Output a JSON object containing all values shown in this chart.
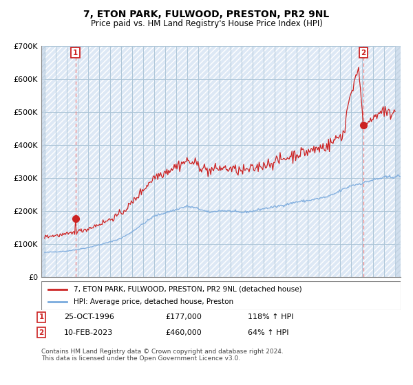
{
  "title": "7, ETON PARK, FULWOOD, PRESTON, PR2 9NL",
  "subtitle": "Price paid vs. HM Land Registry's House Price Index (HPI)",
  "ylim": [
    0,
    700000
  ],
  "yticks": [
    0,
    100000,
    200000,
    300000,
    400000,
    500000,
    600000,
    700000
  ],
  "ytick_labels": [
    "£0",
    "£100K",
    "£200K",
    "£300K",
    "£400K",
    "£500K",
    "£600K",
    "£700K"
  ],
  "sale1_year": 1996.82,
  "sale1_price": 177000,
  "sale2_year": 2023.12,
  "sale2_price": 460000,
  "legend_line1": "7, ETON PARK, FULWOOD, PRESTON, PR2 9NL (detached house)",
  "legend_line2": "HPI: Average price, detached house, Preston",
  "sale1_date_str": "25-OCT-1996",
  "sale1_price_str": "£177,000",
  "sale1_hpi_str": "118% ↑ HPI",
  "sale2_date_str": "10-FEB-2023",
  "sale2_price_str": "£460,000",
  "sale2_hpi_str": "64% ↑ HPI",
  "footnote": "Contains HM Land Registry data © Crown copyright and database right 2024.\nThis data is licensed under the Open Government Licence v3.0.",
  "hpi_color": "#7aaadd",
  "price_color": "#cc2222",
  "dashed_color": "#ee8888",
  "xmin": 1993.7,
  "xmax": 2026.5
}
